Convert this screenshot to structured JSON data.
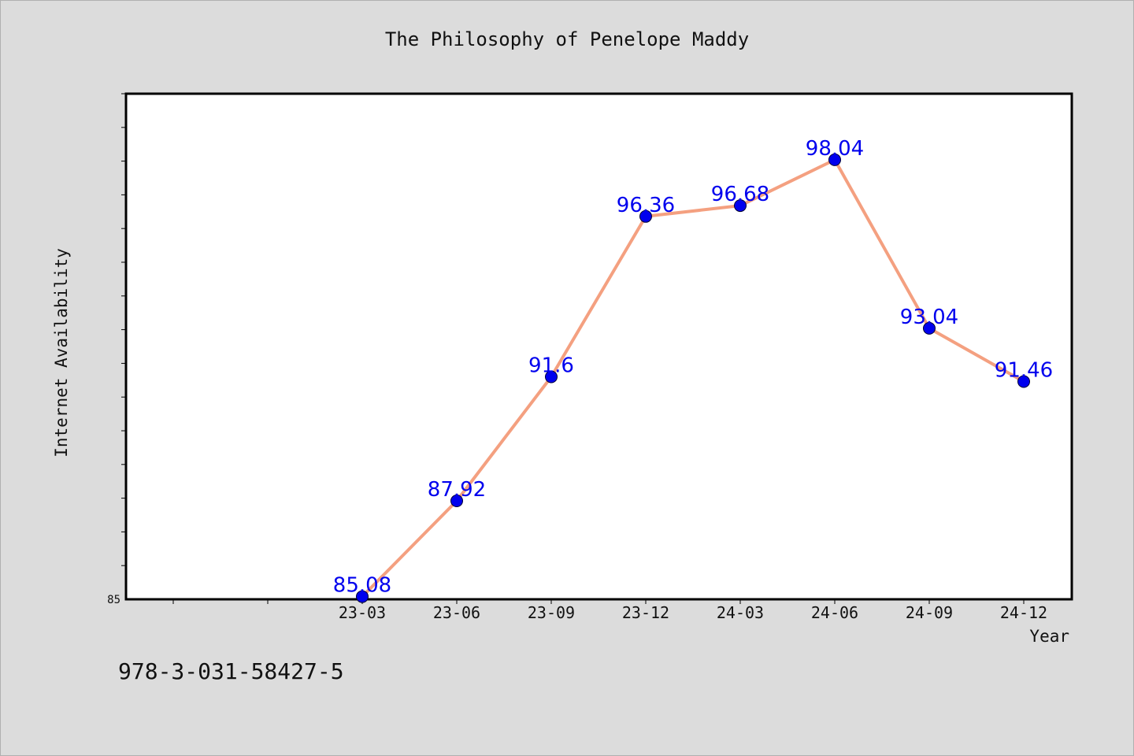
{
  "chart_data": {
    "type": "line",
    "title": "The Philosophy of Penelope Maddy",
    "xlabel": "Year",
    "ylabel": "Internet Availability",
    "categories": [
      "23-03",
      "23-06",
      "23-09",
      "23-12",
      "24-03",
      "24-06",
      "24-09",
      "24-12"
    ],
    "series": [
      {
        "values": [
          85.08,
          87.92,
          91.6,
          96.36,
          96.68,
          98.04,
          93.04,
          91.46
        ],
        "data_labels": [
          "85.08",
          "87.92",
          "91.6",
          "96.36",
          "96.68",
          "98.04",
          "93.04",
          "91.46"
        ]
      }
    ],
    "ylim": [
      85,
      100
    ],
    "yticklabels": [
      "85"
    ],
    "grid": false,
    "legend": "none",
    "colors": {
      "background": "#dcdcdc",
      "plot_background": "#ffffff",
      "line": "#f4a080",
      "marker": "#0000ee",
      "data_label": "#0000ee"
    }
  },
  "footer": {
    "isbn": "978-3-031-58427-5"
  }
}
